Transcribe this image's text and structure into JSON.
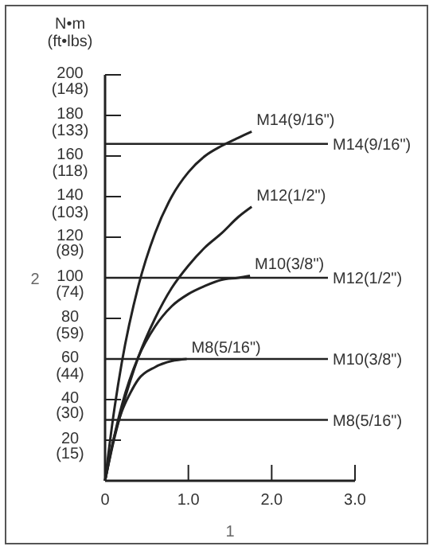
{
  "chart_data": {
    "type": "line",
    "xlabel": "1",
    "annotations": [
      "2",
      "N•m\n(ft•lbs)"
    ],
    "xlim": [
      0,
      3
    ],
    "ylim": [
      0,
      200
    ],
    "xticks": [
      0,
      {
        "value": 1,
        "label": "1.0"
      },
      {
        "value": 2,
        "label": "2.0"
      },
      {
        "value": 3,
        "label": "3.0"
      }
    ],
    "yticks": [
      {
        "value": 0,
        "label": null
      },
      20,
      40,
      60,
      80,
      100,
      120,
      140,
      160,
      180,
      200
    ],
    "y2lim": [
      0,
      148
    ],
    "y2ticks": [
      {
        "value": 15,
        "label": "(15)"
      },
      {
        "value": 30,
        "label": "(30)"
      },
      {
        "value": 44,
        "label": "(44)"
      },
      {
        "value": 59,
        "label": "(59)"
      },
      {
        "value": 74,
        "label": "(74)"
      },
      {
        "value": 89,
        "label": "(89)"
      },
      {
        "value": 103,
        "label": "(103)"
      },
      {
        "value": 118,
        "label": "(118)"
      },
      {
        "value": 133,
        "label": "(133)"
      },
      {
        "value": 148,
        "label": "(148)"
      }
    ],
    "grid": false,
    "marker": "none",
    "line_style": "solid",
    "series": [
      {
        "name": "M14(9/16\")",
        "color": "#222222",
        "x": [
          0,
          0.1,
          0.2,
          0.4,
          0.6,
          0.8,
          1.0,
          1.2,
          1.4,
          1.6,
          1.76
        ],
        "values": [
          0,
          32,
          58,
          96,
          122,
          140,
          152,
          160,
          165,
          169,
          172
        ]
      },
      {
        "name": "M12(1/2\")",
        "color": "#222222",
        "x": [
          0,
          0.1,
          0.2,
          0.4,
          0.6,
          0.8,
          1.0,
          1.2,
          1.4,
          1.6,
          1.76
        ],
        "values": [
          0,
          19,
          35,
          61,
          80,
          95,
          106,
          115,
          122,
          130,
          135
        ]
      },
      {
        "name": "M10(3/8\")",
        "color": "#222222",
        "x": [
          0,
          0.1,
          0.2,
          0.4,
          0.6,
          0.8,
          1.0,
          1.2,
          1.4,
          1.6,
          1.74
        ],
        "values": [
          0,
          20,
          37,
          61,
          76,
          86,
          92,
          96,
          99,
          100,
          101
        ]
      },
      {
        "name": "M8(5/16\")",
        "color": "#222222",
        "x": [
          0,
          0.1,
          0.2,
          0.3,
          0.4,
          0.6,
          0.8,
          0.98
        ],
        "values": [
          0,
          20,
          34,
          43,
          50,
          56,
          59,
          60
        ]
      }
    ],
    "ref_lines": [
      {
        "axis": "y",
        "value": 166,
        "label": "M14(9/16\")",
        "color": "#222222"
      },
      {
        "axis": "y",
        "value": 100,
        "label": "M12(1/2\")",
        "color": "#222222"
      },
      {
        "axis": "y",
        "value": 60,
        "label": "M10(3/8\")",
        "color": "#222222"
      },
      {
        "axis": "y",
        "value": 30,
        "label": "M8(5/16\")",
        "color": "#222222"
      }
    ]
  }
}
